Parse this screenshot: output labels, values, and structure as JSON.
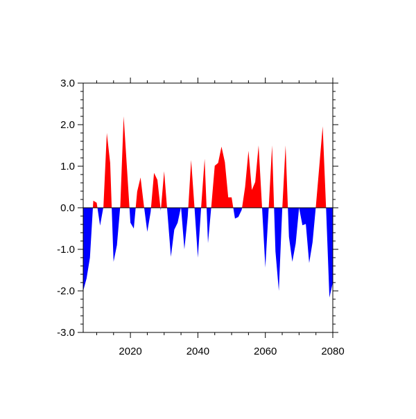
{
  "chart_data": {
    "type": "area",
    "title": "",
    "xlabel": "",
    "ylabel": "",
    "xlim": [
      2006,
      2080
    ],
    "ylim": [
      -3.0,
      3.0
    ],
    "x_major_ticks": [
      2020,
      2040,
      2060,
      2080
    ],
    "x_minor_step": 5,
    "y_major_ticks": [
      3.0,
      2.0,
      1.0,
      0.0,
      -1.0,
      -2.0,
      -3.0
    ],
    "y_tick_labels": [
      "3.0",
      "2.0",
      "1.0",
      "0.0",
      "-1.0",
      "-2.0",
      "-3.0"
    ],
    "x_tick_labels": [
      "2020",
      "2040",
      "2060",
      "2080"
    ],
    "y_minor_step": 0.2,
    "grid": false,
    "reference_line": 0.0,
    "colors": {
      "above": "#ff0000",
      "below": "#0000ff",
      "axis": "#000000"
    },
    "x": [
      2006,
      2007,
      2008,
      2009,
      2010,
      2011,
      2012,
      2013,
      2014,
      2015,
      2016,
      2017,
      2018,
      2019,
      2020,
      2021,
      2022,
      2023,
      2024,
      2025,
      2026,
      2027,
      2028,
      2029,
      2030,
      2031,
      2032,
      2033,
      2034,
      2035,
      2036,
      2037,
      2038,
      2039,
      2040,
      2041,
      2042,
      2043,
      2044,
      2045,
      2046,
      2047,
      2048,
      2049,
      2050,
      2051,
      2052,
      2053,
      2054,
      2055,
      2056,
      2057,
      2058,
      2059,
      2060,
      2061,
      2062,
      2063,
      2064,
      2065,
      2066,
      2067,
      2068,
      2069,
      2070,
      2071,
      2072,
      2073,
      2074,
      2075,
      2076,
      2077,
      2078,
      2079,
      2080
    ],
    "values": [
      -2.0,
      -1.7,
      -1.2,
      0.17,
      0.12,
      -0.43,
      0.02,
      1.8,
      1.08,
      -1.3,
      -0.9,
      0.05,
      2.2,
      0.92,
      -0.36,
      -0.5,
      0.39,
      0.73,
      0.05,
      -0.58,
      -0.1,
      0.84,
      0.67,
      -0.07,
      0.88,
      -0.15,
      -1.18,
      -0.53,
      -0.36,
      0.02,
      -1.0,
      -0.2,
      1.15,
      0.0,
      -1.2,
      0.05,
      1.18,
      -0.85,
      0.05,
      1.01,
      1.08,
      1.47,
      1.1,
      0.25,
      0.25,
      -0.26,
      -0.22,
      -0.05,
      0.5,
      1.37,
      0.43,
      0.62,
      1.5,
      0.05,
      -1.44,
      0.0,
      1.5,
      -1.05,
      -2.0,
      -0.05,
      1.5,
      -0.7,
      -1.3,
      -0.86,
      0.0,
      -0.42,
      -0.39,
      -1.33,
      -0.83,
      0.05,
      1.0,
      1.96,
      0.0,
      -2.16,
      -1.8
    ]
  }
}
